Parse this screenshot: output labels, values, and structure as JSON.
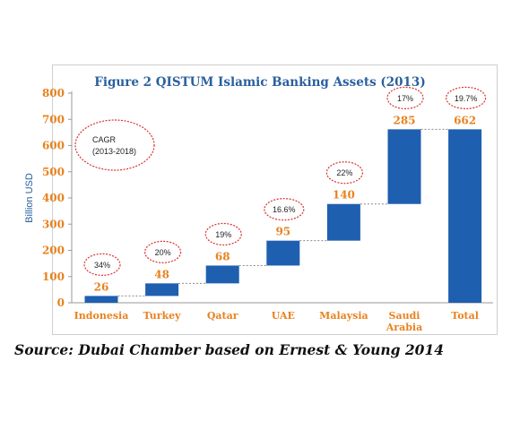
{
  "chart_data": {
    "type": "bar",
    "subtype": "waterfall",
    "title": "Figure 2  QISTUM Islamic Banking Assets (2013)",
    "ylabel": "Billion USD",
    "xlabel": "",
    "ylim": [
      0,
      800
    ],
    "yticks": [
      "0",
      "100",
      "200",
      "300",
      "400",
      "500",
      "600",
      "700",
      "800"
    ],
    "categories": [
      "Indonesia",
      "Turkey",
      "Qatar",
      "UAE",
      "Malaysia",
      "Saudi Arabia",
      "Total"
    ],
    "category_lines": [
      [
        "Indonesia"
      ],
      [
        "Turkey"
      ],
      [
        "Qatar"
      ],
      [
        "UAE"
      ],
      [
        "Malaysia"
      ],
      [
        "Saudi",
        "Arabia"
      ],
      [
        "Total"
      ]
    ],
    "values": [
      26,
      48,
      68,
      95,
      140,
      285,
      662
    ],
    "value_labels": [
      "26",
      "48",
      "68",
      "95",
      "140",
      "285",
      "662"
    ],
    "is_total": [
      false,
      false,
      false,
      false,
      false,
      false,
      true
    ],
    "cagr_labels": [
      "34%",
      "20%",
      "19%",
      "16.6%",
      "22%",
      "17%",
      "19.7%"
    ],
    "cagr_note": [
      "CAGR",
      "(2013-2018)"
    ],
    "bar_color": "#1f5fb0",
    "axis_label_color": "#e8821e",
    "title_color": "#2a5f9e",
    "ellipse_color": "#d9312e",
    "grid": false,
    "legend": "none"
  },
  "source_text": "Source: Dubai Chamber based on Ernest & Young 2014"
}
